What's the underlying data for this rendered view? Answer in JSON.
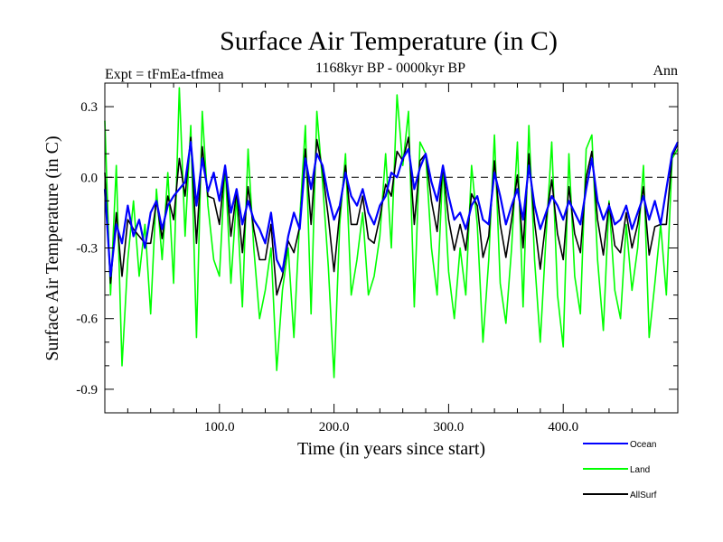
{
  "chart_data": {
    "type": "line",
    "title": "Surface Air Temperature (in C)",
    "subtitle_left": "Expt = tFmEa-tfmea",
    "subtitle_center": "1168kyr BP - 0000kyr BP",
    "subtitle_right": "Ann",
    "xlabel": "Time (in years since start)",
    "ylabel": "Surface Air Temperature (in C)",
    "xlim": [
      0,
      500
    ],
    "ylim": [
      -1.0,
      0.4
    ],
    "x_ticks": [
      {
        "value": 100,
        "label": "100.0"
      },
      {
        "value": 200,
        "label": "200.0"
      },
      {
        "value": 300,
        "label": "300.0"
      },
      {
        "value": 400,
        "label": "400.0"
      }
    ],
    "y_ticks": [
      {
        "value": 0.3,
        "label": "0.3"
      },
      {
        "value": 0.0,
        "label": "0.0"
      },
      {
        "value": -0.3,
        "label": "-0.3"
      },
      {
        "value": -0.6,
        "label": "-0.6"
      },
      {
        "value": -0.9,
        "label": "-0.9"
      }
    ],
    "reference_line": 0.0,
    "legend_position": "bottom-right",
    "series": [
      {
        "name": "Ocean",
        "color": "#0000ff",
        "x": [
          0,
          5,
          10,
          15,
          20,
          25,
          30,
          35,
          40,
          45,
          50,
          55,
          60,
          65,
          70,
          75,
          80,
          85,
          90,
          95,
          100,
          105,
          110,
          115,
          120,
          125,
          130,
          135,
          140,
          145,
          150,
          155,
          160,
          165,
          170,
          175,
          180,
          185,
          190,
          195,
          200,
          205,
          210,
          215,
          220,
          225,
          230,
          235,
          240,
          245,
          250,
          255,
          260,
          265,
          270,
          275,
          280,
          285,
          290,
          295,
          300,
          305,
          310,
          315,
          320,
          325,
          330,
          335,
          340,
          345,
          350,
          355,
          360,
          365,
          370,
          375,
          380,
          385,
          390,
          395,
          400,
          405,
          410,
          415,
          420,
          425,
          430,
          435,
          440,
          445,
          450,
          455,
          460,
          465,
          470,
          475,
          480,
          485,
          490,
          495,
          500
        ],
        "values": [
          -0.05,
          -0.42,
          -0.2,
          -0.28,
          -0.12,
          -0.25,
          -0.18,
          -0.3,
          -0.15,
          -0.1,
          -0.22,
          -0.12,
          -0.08,
          -0.05,
          -0.02,
          0.15,
          -0.12,
          0.08,
          -0.06,
          0.02,
          -0.1,
          0.05,
          -0.15,
          -0.05,
          -0.2,
          -0.1,
          -0.18,
          -0.22,
          -0.28,
          -0.15,
          -0.35,
          -0.4,
          -0.25,
          -0.15,
          -0.22,
          0.08,
          -0.05,
          0.1,
          0.05,
          -0.08,
          -0.18,
          -0.12,
          0.02,
          -0.08,
          -0.12,
          -0.05,
          -0.15,
          -0.2,
          -0.12,
          -0.08,
          0.02,
          0.0,
          0.08,
          0.12,
          -0.05,
          0.04,
          0.1,
          -0.02,
          -0.1,
          0.05,
          -0.08,
          -0.18,
          -0.15,
          -0.22,
          -0.12,
          -0.08,
          -0.18,
          -0.2,
          0.02,
          -0.08,
          -0.2,
          -0.12,
          -0.05,
          -0.18,
          0.05,
          -0.12,
          -0.22,
          -0.15,
          -0.08,
          -0.12,
          -0.18,
          -0.1,
          -0.15,
          -0.2,
          -0.05,
          0.08,
          -0.1,
          -0.18,
          -0.12,
          -0.2,
          -0.18,
          -0.12,
          -0.22,
          -0.15,
          -0.08,
          -0.18,
          -0.1,
          -0.2,
          -0.05,
          0.1,
          0.15
        ]
      },
      {
        "name": "Land",
        "color": "#00ff00",
        "x": [
          0,
          5,
          10,
          15,
          20,
          25,
          30,
          35,
          40,
          45,
          50,
          55,
          60,
          65,
          70,
          75,
          80,
          85,
          90,
          95,
          100,
          105,
          110,
          115,
          120,
          125,
          130,
          135,
          140,
          145,
          150,
          155,
          160,
          165,
          170,
          175,
          180,
          185,
          190,
          195,
          200,
          205,
          210,
          215,
          220,
          225,
          230,
          235,
          240,
          245,
          250,
          255,
          260,
          265,
          270,
          275,
          280,
          285,
          290,
          295,
          300,
          305,
          310,
          315,
          320,
          325,
          330,
          335,
          340,
          345,
          350,
          355,
          360,
          365,
          370,
          375,
          380,
          385,
          390,
          395,
          400,
          405,
          410,
          415,
          420,
          425,
          430,
          435,
          440,
          445,
          450,
          455,
          460,
          465,
          470,
          475,
          480,
          485,
          490,
          495,
          500
        ],
        "values": [
          0.24,
          -0.5,
          0.05,
          -0.8,
          -0.35,
          -0.1,
          -0.42,
          -0.2,
          -0.58,
          -0.05,
          -0.35,
          0.02,
          -0.45,
          0.38,
          -0.25,
          0.22,
          -0.68,
          0.28,
          -0.12,
          -0.35,
          -0.42,
          0.05,
          -0.45,
          -0.08,
          -0.55,
          0.12,
          -0.3,
          -0.6,
          -0.48,
          -0.3,
          -0.82,
          -0.48,
          -0.3,
          -0.68,
          -0.18,
          0.22,
          -0.58,
          0.28,
          -0.02,
          -0.38,
          -0.85,
          -0.2,
          0.1,
          -0.5,
          -0.35,
          -0.15,
          -0.5,
          -0.42,
          -0.25,
          0.1,
          -0.3,
          0.35,
          0.05,
          0.28,
          -0.55,
          0.15,
          0.1,
          -0.3,
          -0.5,
          0.05,
          -0.4,
          -0.6,
          -0.3,
          -0.5,
          0.05,
          -0.2,
          -0.7,
          -0.35,
          0.18,
          -0.45,
          -0.62,
          -0.3,
          0.15,
          -0.55,
          0.22,
          -0.35,
          -0.7,
          -0.25,
          0.15,
          -0.5,
          -0.72,
          0.1,
          -0.42,
          -0.58,
          0.12,
          0.18,
          -0.35,
          -0.65,
          -0.1,
          -0.48,
          -0.6,
          -0.2,
          -0.48,
          -0.3,
          0.05,
          -0.68,
          -0.45,
          -0.2,
          -0.5,
          0.08,
          0.12
        ]
      },
      {
        "name": "AllSurf",
        "color": "#000000",
        "x": [
          0,
          5,
          10,
          15,
          20,
          25,
          30,
          35,
          40,
          45,
          50,
          55,
          60,
          65,
          70,
          75,
          80,
          85,
          90,
          95,
          100,
          105,
          110,
          115,
          120,
          125,
          130,
          135,
          140,
          145,
          150,
          155,
          160,
          165,
          170,
          175,
          180,
          185,
          190,
          195,
          200,
          205,
          210,
          215,
          220,
          225,
          230,
          235,
          240,
          245,
          250,
          255,
          260,
          265,
          270,
          275,
          280,
          285,
          290,
          295,
          300,
          305,
          310,
          315,
          320,
          325,
          330,
          335,
          340,
          345,
          350,
          355,
          360,
          365,
          370,
          375,
          380,
          385,
          390,
          395,
          400,
          405,
          410,
          415,
          420,
          425,
          430,
          435,
          440,
          445,
          450,
          455,
          460,
          465,
          470,
          475,
          480,
          485,
          490,
          495,
          500
        ],
        "values": [
          0.02,
          -0.45,
          -0.15,
          -0.42,
          -0.18,
          -0.22,
          -0.25,
          -0.28,
          -0.28,
          -0.1,
          -0.26,
          -0.08,
          -0.18,
          0.08,
          -0.08,
          0.17,
          -0.28,
          0.13,
          -0.08,
          -0.09,
          -0.2,
          0.05,
          -0.25,
          -0.06,
          -0.32,
          -0.04,
          -0.22,
          -0.35,
          -0.35,
          -0.2,
          -0.5,
          -0.42,
          -0.27,
          -0.32,
          -0.21,
          0.12,
          -0.2,
          0.16,
          0.03,
          -0.17,
          -0.4,
          -0.15,
          0.05,
          -0.2,
          -0.2,
          -0.08,
          -0.26,
          -0.28,
          -0.17,
          -0.03,
          -0.08,
          0.11,
          0.07,
          0.17,
          -0.2,
          0.07,
          0.1,
          -0.1,
          -0.23,
          0.05,
          -0.18,
          -0.31,
          -0.2,
          -0.31,
          -0.07,
          -0.12,
          -0.34,
          -0.25,
          0.07,
          -0.2,
          -0.34,
          -0.18,
          0.01,
          -0.3,
          0.1,
          -0.19,
          -0.39,
          -0.18,
          -0.01,
          -0.24,
          -0.35,
          -0.04,
          -0.24,
          -0.32,
          0.0,
          0.11,
          -0.18,
          -0.33,
          -0.11,
          -0.29,
          -0.32,
          -0.15,
          -0.3,
          -0.2,
          -0.04,
          -0.33,
          -0.21,
          -0.2,
          -0.2,
          0.09,
          0.14
        ]
      }
    ]
  }
}
